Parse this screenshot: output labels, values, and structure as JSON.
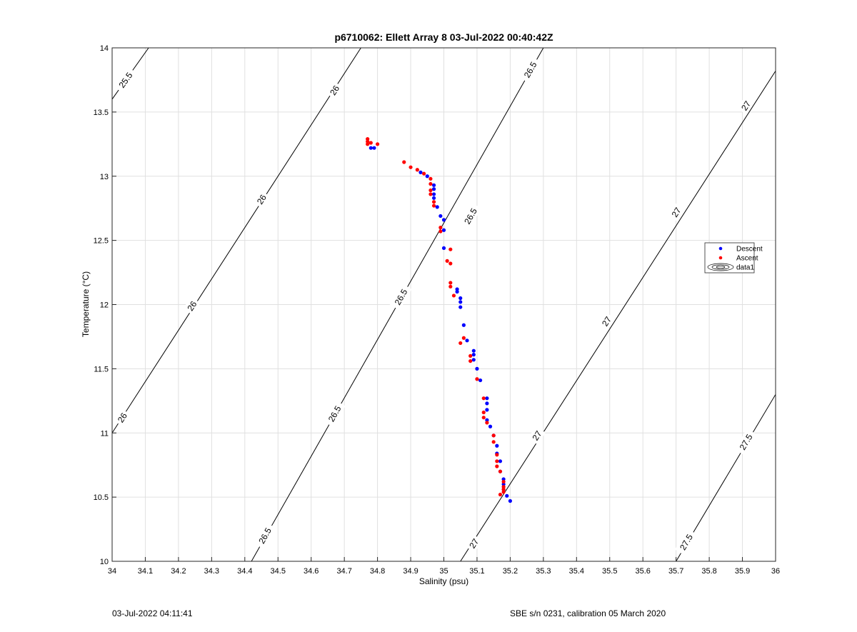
{
  "footer": {
    "left": "03-Jul-2022 04:11:41",
    "right": "SBE s/n 0231, calibration 05 March 2020"
  },
  "chart_data": {
    "type": "scatter",
    "title": "p6710062: Ellett Array 8 03-Jul-2022 00:40:42Z",
    "xlabel": "Salinity (psu)",
    "ylabel": "Temperature (°C)",
    "xlim": [
      34,
      36
    ],
    "ylim": [
      10,
      14
    ],
    "xticks": [
      "34",
      "34.1",
      "34.2",
      "34.3",
      "34.4",
      "34.5",
      "34.6",
      "34.7",
      "34.8",
      "34.9",
      "35",
      "35.1",
      "35.2",
      "35.3",
      "35.4",
      "35.5",
      "35.6",
      "35.7",
      "35.8",
      "35.9",
      "36"
    ],
    "yticks": [
      "10",
      "10.5",
      "11",
      "11.5",
      "12",
      "12.5",
      "13",
      "13.5",
      "14"
    ],
    "grid": true,
    "legend_position": "right",
    "colors": {
      "Descent": "#0000ff",
      "Ascent": "#ff0000",
      "contour": "#000000",
      "grid": "#e0e0e0"
    },
    "series": [
      {
        "name": "Descent",
        "marker": "dot",
        "points": [
          [
            34.78,
            13.22
          ],
          [
            34.79,
            13.22
          ],
          [
            34.93,
            13.03
          ],
          [
            34.95,
            13.0
          ],
          [
            34.97,
            12.93
          ],
          [
            34.97,
            12.9
          ],
          [
            34.97,
            12.86
          ],
          [
            34.97,
            12.83
          ],
          [
            34.98,
            12.76
          ],
          [
            34.99,
            12.69
          ],
          [
            35.0,
            12.66
          ],
          [
            35.0,
            12.58
          ],
          [
            35.0,
            12.44
          ],
          [
            35.04,
            12.12
          ],
          [
            35.04,
            12.1
          ],
          [
            35.05,
            12.05
          ],
          [
            35.05,
            12.02
          ],
          [
            35.05,
            11.98
          ],
          [
            35.06,
            11.84
          ],
          [
            35.07,
            11.72
          ],
          [
            35.09,
            11.64
          ],
          [
            35.09,
            11.61
          ],
          [
            35.09,
            11.57
          ],
          [
            35.1,
            11.5
          ],
          [
            35.11,
            11.41
          ],
          [
            35.13,
            11.27
          ],
          [
            35.13,
            11.23
          ],
          [
            35.13,
            11.18
          ],
          [
            35.13,
            11.1
          ],
          [
            35.14,
            11.05
          ],
          [
            35.15,
            10.98
          ],
          [
            35.16,
            10.9
          ],
          [
            35.16,
            10.84
          ],
          [
            35.17,
            10.78
          ],
          [
            35.17,
            10.7
          ],
          [
            35.18,
            10.64
          ],
          [
            35.18,
            10.6
          ],
          [
            35.18,
            10.56
          ],
          [
            35.19,
            10.51
          ],
          [
            35.2,
            10.47
          ]
        ]
      },
      {
        "name": "Ascent",
        "marker": "dot",
        "points": [
          [
            34.77,
            13.29
          ],
          [
            34.77,
            13.27
          ],
          [
            34.77,
            13.25
          ],
          [
            34.78,
            13.26
          ],
          [
            34.8,
            13.25
          ],
          [
            34.88,
            13.11
          ],
          [
            34.9,
            13.07
          ],
          [
            34.92,
            13.05
          ],
          [
            34.94,
            13.02
          ],
          [
            34.96,
            12.98
          ],
          [
            34.96,
            12.94
          ],
          [
            34.96,
            12.89
          ],
          [
            34.96,
            12.86
          ],
          [
            34.97,
            12.8
          ],
          [
            34.97,
            12.77
          ],
          [
            34.99,
            12.6
          ],
          [
            34.99,
            12.57
          ],
          [
            35.01,
            12.34
          ],
          [
            35.02,
            12.32
          ],
          [
            35.02,
            12.43
          ],
          [
            35.02,
            12.17
          ],
          [
            35.02,
            12.14
          ],
          [
            35.03,
            12.07
          ],
          [
            35.05,
            11.7
          ],
          [
            35.06,
            11.74
          ],
          [
            35.08,
            11.56
          ],
          [
            35.08,
            11.6
          ],
          [
            35.1,
            11.42
          ],
          [
            35.12,
            11.27
          ],
          [
            35.12,
            11.16
          ],
          [
            35.12,
            11.12
          ],
          [
            35.13,
            11.08
          ],
          [
            35.15,
            10.98
          ],
          [
            35.15,
            10.93
          ],
          [
            35.16,
            10.83
          ],
          [
            35.16,
            10.78
          ],
          [
            35.16,
            10.74
          ],
          [
            35.17,
            10.7
          ],
          [
            35.18,
            10.62
          ],
          [
            35.18,
            10.58
          ],
          [
            35.18,
            10.54
          ],
          [
            35.17,
            10.52
          ],
          [
            35.18,
            10.56
          ]
        ]
      },
      {
        "name": "data1",
        "marker": "contour"
      }
    ],
    "contours": [
      {
        "level": "25.5",
        "segment": [
          [
            34.0,
            13.6
          ],
          [
            34.11,
            14.0
          ]
        ],
        "labels": [
          [
            34.04,
            13.75
          ]
        ]
      },
      {
        "level": "26",
        "segment": [
          [
            34.0,
            11.0
          ],
          [
            34.75,
            14.0
          ]
        ],
        "labels": [
          [
            34.03,
            11.12
          ],
          [
            34.24,
            11.99
          ],
          [
            34.45,
            12.82
          ],
          [
            34.67,
            13.67
          ]
        ]
      },
      {
        "level": "26.5",
        "segment": [
          [
            34.42,
            10.0
          ],
          [
            35.3,
            14.0
          ]
        ],
        "labels": [
          [
            34.46,
            10.2
          ],
          [
            34.67,
            11.15
          ],
          [
            34.87,
            12.06
          ],
          [
            35.08,
            12.69
          ],
          [
            35.26,
            13.83
          ]
        ]
      },
      {
        "level": "27",
        "segment": [
          [
            35.05,
            10.0
          ],
          [
            36.0,
            13.82
          ]
        ],
        "labels": [
          [
            35.09,
            10.14
          ],
          [
            35.28,
            10.98
          ],
          [
            35.49,
            11.87
          ],
          [
            35.7,
            12.72
          ],
          [
            35.91,
            13.55
          ]
        ]
      },
      {
        "level": "27.5",
        "segment": [
          [
            35.7,
            10.0
          ],
          [
            36.0,
            11.3
          ]
        ],
        "labels": [
          [
            35.73,
            10.15
          ],
          [
            35.91,
            10.93
          ]
        ]
      }
    ]
  }
}
